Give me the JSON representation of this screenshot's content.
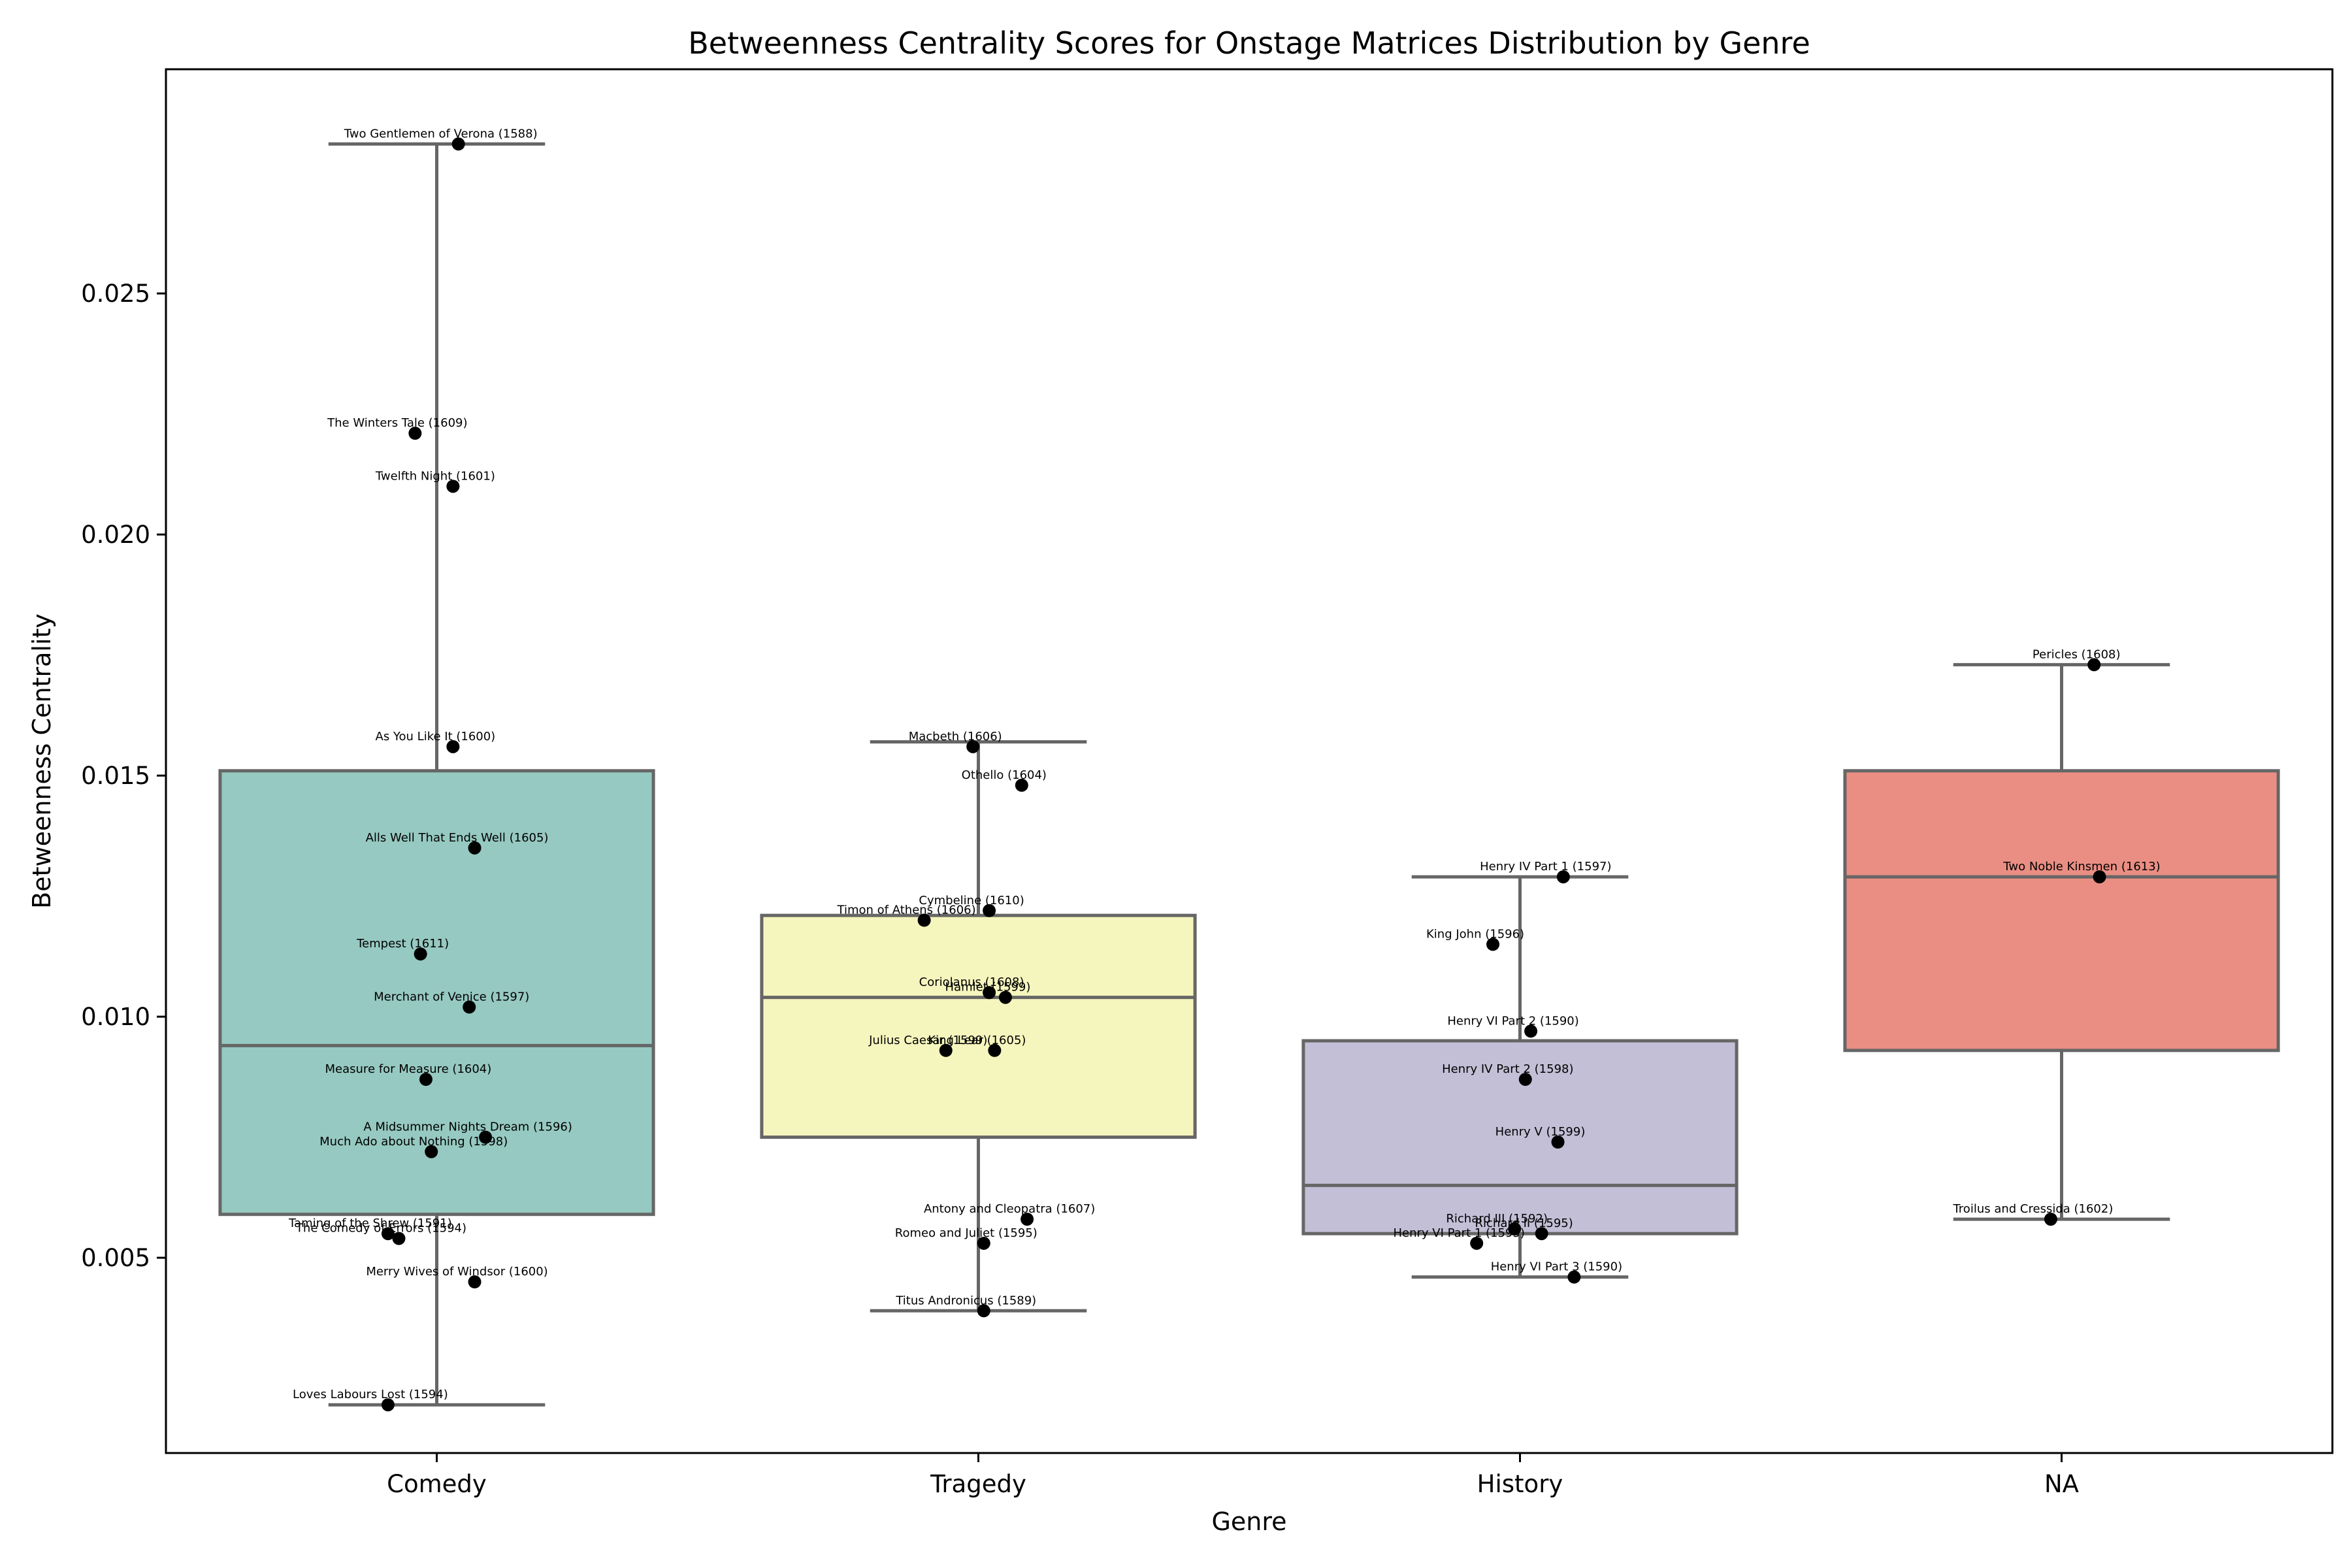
{
  "chart_data": {
    "type": "box",
    "title": "Betweenness Centrality Scores for Onstage Matrices Distribution by Genre",
    "xlabel": "Genre",
    "ylabel": "Betweenness Centrality",
    "ylim": [
      0.00095,
      0.02965
    ],
    "yticks": [
      {
        "value": 0.005,
        "label": "0.005"
      },
      {
        "value": 0.01,
        "label": "0.010"
      },
      {
        "value": 0.015,
        "label": "0.015"
      },
      {
        "value": 0.02,
        "label": "0.020"
      },
      {
        "value": 0.025,
        "label": "0.025"
      }
    ],
    "categories": [
      "Comedy",
      "Tragedy",
      "History",
      "NA"
    ],
    "boxes": [
      {
        "category": "Comedy",
        "color": "#96c9c1",
        "whisker_low": 0.00195,
        "q1": 0.0059,
        "median": 0.0094,
        "q3": 0.0151,
        "whisker_high": 0.0281
      },
      {
        "category": "Tragedy",
        "color": "#f5f5be",
        "whisker_low": 0.0039,
        "q1": 0.0075,
        "median": 0.0104,
        "q3": 0.0121,
        "whisker_high": 0.0157
      },
      {
        "category": "History",
        "color": "#c2bfd6",
        "whisker_low": 0.0046,
        "q1": 0.0055,
        "median": 0.0065,
        "q3": 0.0095,
        "whisker_high": 0.0129
      },
      {
        "category": "NA",
        "color": "#ea8e83",
        "whisker_low": 0.0058,
        "q1": 0.0093,
        "median": 0.0129,
        "q3": 0.0151,
        "whisker_high": 0.0173
      }
    ],
    "points": [
      {
        "category": "Comedy",
        "label": "Two Gentlemen of Verona (1588)",
        "value": 0.0281,
        "jitter": 0.04
      },
      {
        "category": "Comedy",
        "label": "The Winters Tale (1609)",
        "value": 0.0221,
        "jitter": -0.04
      },
      {
        "category": "Comedy",
        "label": "Twelfth Night (1601)",
        "value": 0.021,
        "jitter": 0.03
      },
      {
        "category": "Comedy",
        "label": "As You Like It (1600)",
        "value": 0.0156,
        "jitter": 0.03
      },
      {
        "category": "Comedy",
        "label": "Alls Well That Ends Well (1605)",
        "value": 0.0135,
        "jitter": 0.07
      },
      {
        "category": "Comedy",
        "label": "Tempest (1611)",
        "value": 0.0113,
        "jitter": -0.03
      },
      {
        "category": "Comedy",
        "label": "Merchant of Venice (1597)",
        "value": 0.0102,
        "jitter": 0.06
      },
      {
        "category": "Comedy",
        "label": "Measure for Measure (1604)",
        "value": 0.0087,
        "jitter": -0.02
      },
      {
        "category": "Comedy",
        "label": "A Midsummer Nights Dream (1596)",
        "value": 0.0075,
        "jitter": 0.09
      },
      {
        "category": "Comedy",
        "label": "Much Ado about Nothing (1598)",
        "value": 0.0072,
        "jitter": -0.01
      },
      {
        "category": "Comedy",
        "label": "Taming of the Shrew (1591)",
        "value": 0.0055,
        "jitter": -0.09
      },
      {
        "category": "Comedy",
        "label": "The Comedy of Errors (1594)",
        "value": 0.0054,
        "jitter": -0.07
      },
      {
        "category": "Comedy",
        "label": "Merry Wives of Windsor (1600)",
        "value": 0.0045,
        "jitter": 0.07
      },
      {
        "category": "Comedy",
        "label": "Loves Labours Lost (1594)",
        "value": 0.00195,
        "jitter": -0.09
      },
      {
        "category": "Tragedy",
        "label": "Macbeth (1606)",
        "value": 0.0156,
        "jitter": -0.01
      },
      {
        "category": "Tragedy",
        "label": "Othello (1604)",
        "value": 0.0148,
        "jitter": 0.08
      },
      {
        "category": "Tragedy",
        "label": "Cymbeline (1610)",
        "value": 0.0122,
        "jitter": 0.02
      },
      {
        "category": "Tragedy",
        "label": "Timon of Athens (1606)",
        "value": 0.012,
        "jitter": -0.1
      },
      {
        "category": "Tragedy",
        "label": "Coriolanus (1608)",
        "value": 0.0105,
        "jitter": 0.02
      },
      {
        "category": "Tragedy",
        "label": "Hamlet (1599)",
        "value": 0.0104,
        "jitter": 0.05
      },
      {
        "category": "Tragedy",
        "label": "Julius Caesar (1599)",
        "value": 0.0093,
        "jitter": -0.06
      },
      {
        "category": "Tragedy",
        "label": "King Lear (1605)",
        "value": 0.0093,
        "jitter": 0.03
      },
      {
        "category": "Tragedy",
        "label": "Antony and Cleopatra (1607)",
        "value": 0.0058,
        "jitter": 0.09
      },
      {
        "category": "Tragedy",
        "label": "Romeo and Juliet (1595)",
        "value": 0.0053,
        "jitter": 0.01
      },
      {
        "category": "Tragedy",
        "label": "Titus Andronicus (1589)",
        "value": 0.0039,
        "jitter": 0.01
      },
      {
        "category": "History",
        "label": "Henry IV Part 1 (1597)",
        "value": 0.0129,
        "jitter": 0.08
      },
      {
        "category": "History",
        "label": "King John (1596)",
        "value": 0.0115,
        "jitter": -0.05
      },
      {
        "category": "History",
        "label": "Henry VI Part 2 (1590)",
        "value": 0.0097,
        "jitter": 0.02
      },
      {
        "category": "History",
        "label": "Henry IV Part 2 (1598)",
        "value": 0.0087,
        "jitter": 0.01
      },
      {
        "category": "History",
        "label": "Henry V (1599)",
        "value": 0.0074,
        "jitter": 0.07
      },
      {
        "category": "History",
        "label": "Richard III (1592)",
        "value": 0.0056,
        "jitter": -0.01
      },
      {
        "category": "History",
        "label": "Richard II (1595)",
        "value": 0.0055,
        "jitter": 0.04
      },
      {
        "category": "History",
        "label": "Henry VI Part 1 (1595)",
        "value": 0.0053,
        "jitter": -0.08
      },
      {
        "category": "History",
        "label": "Henry VI Part 3 (1590)",
        "value": 0.0046,
        "jitter": 0.1
      },
      {
        "category": "NA",
        "label": "Pericles (1608)",
        "value": 0.0173,
        "jitter": 0.06
      },
      {
        "category": "NA",
        "label": "Two Noble Kinsmen (1613)",
        "value": 0.0129,
        "jitter": 0.07
      },
      {
        "category": "NA",
        "label": "Troilus and Cressida (1602)",
        "value": 0.0058,
        "jitter": -0.02
      }
    ]
  }
}
